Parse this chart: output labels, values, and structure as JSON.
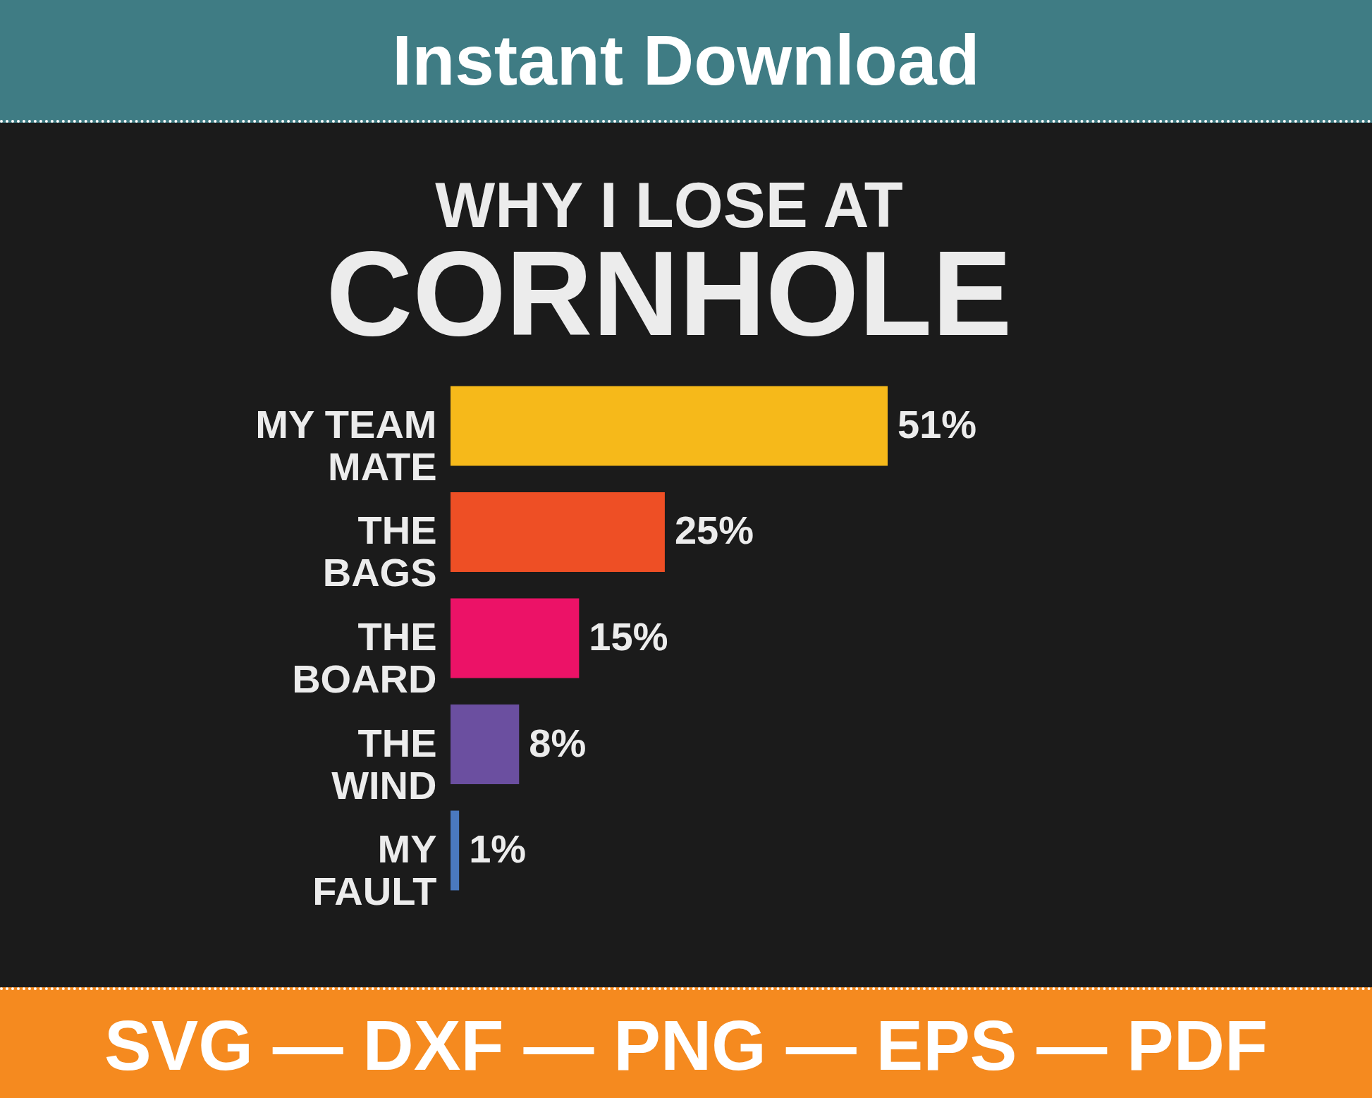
{
  "chart_data": {
    "type": "bar",
    "orientation": "horizontal",
    "title": "WHY I LOSE AT",
    "subtitle": "CORNHOLE",
    "categories": [
      "MY TEAM MATE",
      "THE BAGS",
      "THE BOARD",
      "THE WIND",
      "MY FAULT"
    ],
    "values": [
      51,
      25,
      15,
      8,
      1
    ],
    "colors": [
      "#f6b91a",
      "#ee4f25",
      "#ec1267",
      "#6b4fa0",
      "#4a79bf"
    ],
    "value_labels": [
      "51%",
      "25%",
      "15%",
      "8%",
      "1%"
    ],
    "annotations": [
      "Instant Download",
      "SVG — DXF — PNG — EPS — PDF"
    ],
    "tick_labels": "y"
  }
}
